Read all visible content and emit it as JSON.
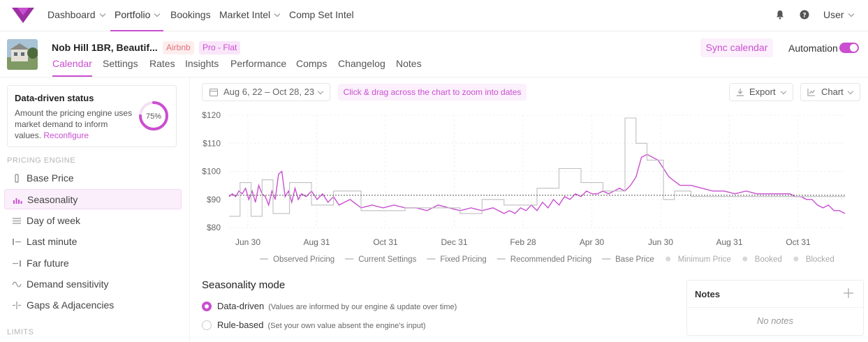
{
  "brand": {
    "accent": "#c94fd0",
    "logo": "logo-mark"
  },
  "nav": {
    "items": [
      {
        "label": "Dashboard",
        "dropdown": true
      },
      {
        "label": "Portfolio",
        "dropdown": true,
        "active": true
      },
      {
        "label": "Bookings",
        "dropdown": false
      },
      {
        "label": "Market Intel",
        "dropdown": true
      },
      {
        "label": "Comp Set Intel",
        "dropdown": false
      }
    ],
    "notifications_icon": "bell-icon",
    "help_icon": "help-icon",
    "user_label": "User"
  },
  "listing": {
    "title": "Nob Hill 1BR, Beautif...",
    "badges": [
      "Airbnb",
      "Pro - Flat"
    ],
    "tabs": [
      "Calendar",
      "Settings",
      "Rates",
      "Insights",
      "Performance",
      "Comps",
      "Changelog",
      "Notes"
    ],
    "active_tab": "Calendar",
    "sync_label": "Sync calendar",
    "automation_label": "Automation",
    "automation_on": true
  },
  "sidebar": {
    "status": {
      "title": "Data-driven status",
      "description": "Amount the pricing engine uses market demand to inform values.",
      "link": "Reconfigure",
      "percent_label": "75%",
      "percent_value": 75
    },
    "pricing_engine_label": "PRICING ENGINE",
    "items": [
      {
        "label": "Base Price",
        "icon": "base-price-icon"
      },
      {
        "label": "Seasonality",
        "icon": "seasonality-icon",
        "active": true
      },
      {
        "label": "Day of week",
        "icon": "day-of-week-icon"
      },
      {
        "label": "Last minute",
        "icon": "last-minute-icon"
      },
      {
        "label": "Far future",
        "icon": "far-future-icon"
      },
      {
        "label": "Demand sensitivity",
        "icon": "wave-icon"
      },
      {
        "label": "Gaps & Adjacencies",
        "icon": "gaps-icon"
      }
    ],
    "limits_label": "LIMITS"
  },
  "toolbar": {
    "date_range": "Aug 6, 22 – Oct 28, 23",
    "hint": "Click & drag across the chart to zoom into dates",
    "export_label": "Export",
    "chart_label": "Chart"
  },
  "chart_data": {
    "type": "line",
    "x_ticks": [
      "Jun 30",
      "Aug 31",
      "Oct 31",
      "Dec 31",
      "Feb 28",
      "Apr 30",
      "Jun 30",
      "Aug 31",
      "Oct 31"
    ],
    "y_ticks": [
      "$80",
      "$90",
      "$100",
      "$110",
      "$120"
    ],
    "ylim": [
      80,
      120
    ],
    "reference_line": 91.5,
    "series": [
      {
        "name": "Recommended Pricing",
        "color": "#c94fd0",
        "x": [
          0,
          3,
          6,
          9,
          12,
          15,
          18,
          21,
          24,
          27,
          30,
          33,
          36,
          39,
          42,
          45,
          48,
          51,
          54,
          57,
          60,
          63,
          66,
          70,
          75,
          80,
          85,
          90,
          95,
          100,
          110,
          120,
          130,
          140,
          150,
          160,
          170,
          180,
          190,
          200,
          210,
          220,
          230,
          240,
          250,
          255,
          260,
          265,
          270,
          275,
          280,
          285,
          290,
          295,
          300,
          305,
          310,
          315,
          320,
          325,
          330,
          335,
          340,
          345,
          350,
          355,
          360,
          365,
          370,
          375,
          380,
          390,
          400,
          410,
          420,
          430,
          440,
          450,
          460,
          470,
          480,
          490,
          500,
          510,
          515,
          520,
          525,
          530,
          535,
          540,
          545,
          550,
          555,
          560
        ],
        "values": [
          91,
          92,
          91,
          93,
          92,
          94,
          90,
          93,
          89,
          95,
          92,
          91,
          88,
          93,
          90,
          99,
          100,
          91,
          93,
          89,
          94,
          90,
          92,
          91,
          93,
          90,
          92,
          89,
          91,
          88,
          90,
          87,
          88,
          87,
          88,
          87,
          87,
          86,
          88,
          87,
          86,
          87,
          86,
          87,
          85,
          86,
          85,
          87,
          86,
          88,
          86,
          89,
          87,
          90,
          88,
          91,
          90,
          92,
          91,
          93,
          92,
          92,
          93,
          92,
          93,
          94,
          93,
          95,
          98,
          105,
          106,
          104,
          98,
          95,
          95,
          94,
          93,
          93,
          92,
          93,
          92,
          92,
          92,
          92,
          91,
          91,
          90,
          90,
          88,
          87,
          88,
          86,
          86,
          85
        ]
      },
      {
        "name": "Observed Pricing",
        "color": "#bfbfbf",
        "x": [
          0,
          10,
          10,
          20,
          20,
          30,
          30,
          40,
          40,
          55,
          55,
          75,
          75,
          95,
          95,
          120,
          120,
          160,
          160,
          210,
          210,
          230,
          230,
          250,
          250,
          280,
          280,
          300,
          300,
          320,
          320,
          340,
          340,
          360,
          360,
          370,
          370,
          380,
          380,
          395,
          395,
          405,
          405,
          420,
          420,
          440,
          440,
          560
        ],
        "values": [
          84,
          84,
          96,
          96,
          84,
          84,
          97,
          97,
          85,
          85,
          96,
          96,
          88,
          88,
          93,
          93,
          86,
          86,
          87,
          87,
          85,
          85,
          90,
          90,
          88,
          88,
          94,
          94,
          101,
          101,
          96,
          96,
          93,
          93,
          119,
          119,
          110,
          110,
          104,
          104,
          90,
          90,
          93,
          93,
          91,
          91,
          91,
          91
        ]
      }
    ],
    "legend": [
      {
        "name": "Observed Pricing",
        "kind": "line",
        "color": "#bdbdbd"
      },
      {
        "name": "Current Settings",
        "kind": "line",
        "color": "#bdbdbd"
      },
      {
        "name": "Fixed Pricing",
        "kind": "line",
        "color": "#bdbdbd"
      },
      {
        "name": "Recommended Pricing",
        "kind": "line",
        "color": "#bdbdbd"
      },
      {
        "name": "Base Price",
        "kind": "line",
        "color": "#bdbdbd"
      },
      {
        "name": "Minimum Price",
        "kind": "dot",
        "color": "#d8d8d8"
      },
      {
        "name": "Booked",
        "kind": "dot",
        "color": "#d8d8d8"
      },
      {
        "name": "Blocked",
        "kind": "dot",
        "color": "#d8d8d8"
      }
    ]
  },
  "seasonality": {
    "title": "Seasonality mode",
    "options": [
      {
        "label": "Data-driven",
        "description": "(Values are informed by our engine & update over time)",
        "selected": true
      },
      {
        "label": "Rule-based",
        "description": "(Set your own value absent the engine’s input)",
        "selected": false
      }
    ]
  },
  "notes": {
    "title": "Notes",
    "empty": "No notes"
  }
}
